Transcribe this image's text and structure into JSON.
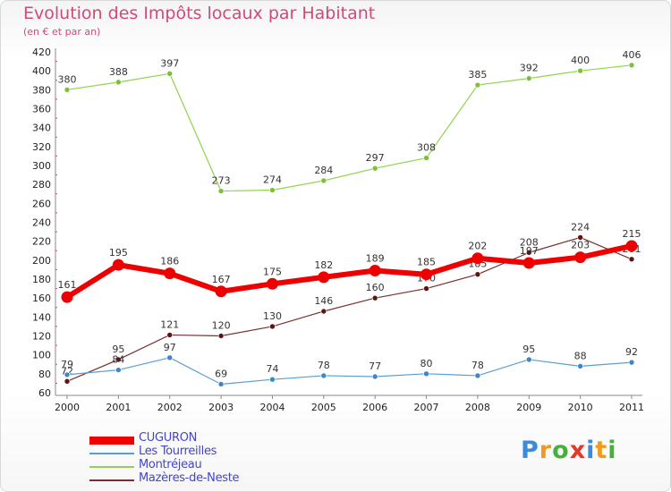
{
  "title": "Evolution des Impôts locaux par Habitant",
  "subtitle": "(en € et par an)",
  "logo": {
    "text": "Proxiti",
    "letter_colors": [
      "#3a8be0",
      "#f29a1f",
      "#47b03a",
      "#e0392a",
      "#3a8be0",
      "#f29a1f",
      "#47b03a"
    ]
  },
  "chart_data": {
    "type": "line",
    "title": "Evolution des Impôts locaux par Habitant",
    "subtitle": "(en € et par an)",
    "xlabel": "",
    "ylabel": "",
    "ylim": [
      60,
      420
    ],
    "y_ticks": [
      60,
      80,
      100,
      120,
      140,
      160,
      180,
      200,
      220,
      240,
      260,
      280,
      300,
      320,
      340,
      360,
      380,
      400,
      420
    ],
    "grid": false,
    "legend_position": "bottom-left",
    "x": [
      "2000",
      "2001",
      "2002",
      "2003",
      "2004",
      "2005",
      "2006",
      "2007",
      "2008",
      "2009",
      "2010",
      "2011"
    ],
    "series": [
      {
        "name": "Montréjeau",
        "color": "#8fd44a",
        "marker": "#7cc13a",
        "width": 1.2,
        "radius": 3,
        "values": [
          380,
          388,
          397,
          273,
          274,
          284,
          297,
          308,
          385,
          392,
          400,
          406
        ],
        "labels": [
          "380",
          "388",
          "397",
          "273",
          "274",
          "284",
          "297",
          "308",
          "385",
          "392",
          "400",
          "406"
        ]
      },
      {
        "name": "Mazères-de-Neste",
        "color": "#7a2f2f",
        "marker": "#5a1515",
        "width": 1.2,
        "radius": 3,
        "values": [
          72,
          95,
          121,
          120,
          130,
          146,
          160,
          170,
          185,
          208,
          224,
          201
        ],
        "labels": [
          "72",
          "95",
          "121",
          "120",
          "130",
          "146",
          "160",
          "170",
          "185",
          "208",
          "224",
          "201"
        ]
      },
      {
        "name": "Les Tourreilles",
        "color": "#5a9ed6",
        "marker": "#3f86c8",
        "width": 1.2,
        "radius": 3,
        "values": [
          79,
          84,
          97,
          69,
          74,
          78,
          77,
          80,
          78,
          95,
          88,
          92
        ],
        "labels": [
          "79",
          "84",
          "97",
          "69",
          "74",
          "78",
          "77",
          "80",
          "78",
          "95",
          "88",
          "92"
        ]
      },
      {
        "name": "CUGURON",
        "color": "#ee0000",
        "marker": "#ee0000",
        "width": 6,
        "radius": 6.5,
        "values": [
          161,
          195,
          186,
          167,
          175,
          182,
          189,
          185,
          202,
          197,
          203,
          215
        ],
        "labels": [
          "161",
          "195",
          "186",
          "167",
          "175",
          "182",
          "189",
          "185",
          "202",
          "197",
          "203",
          "215"
        ]
      }
    ],
    "legend": [
      "CUGURON",
      "Les Tourreilles",
      "Montréjeau",
      "Mazères-de-Neste"
    ]
  }
}
